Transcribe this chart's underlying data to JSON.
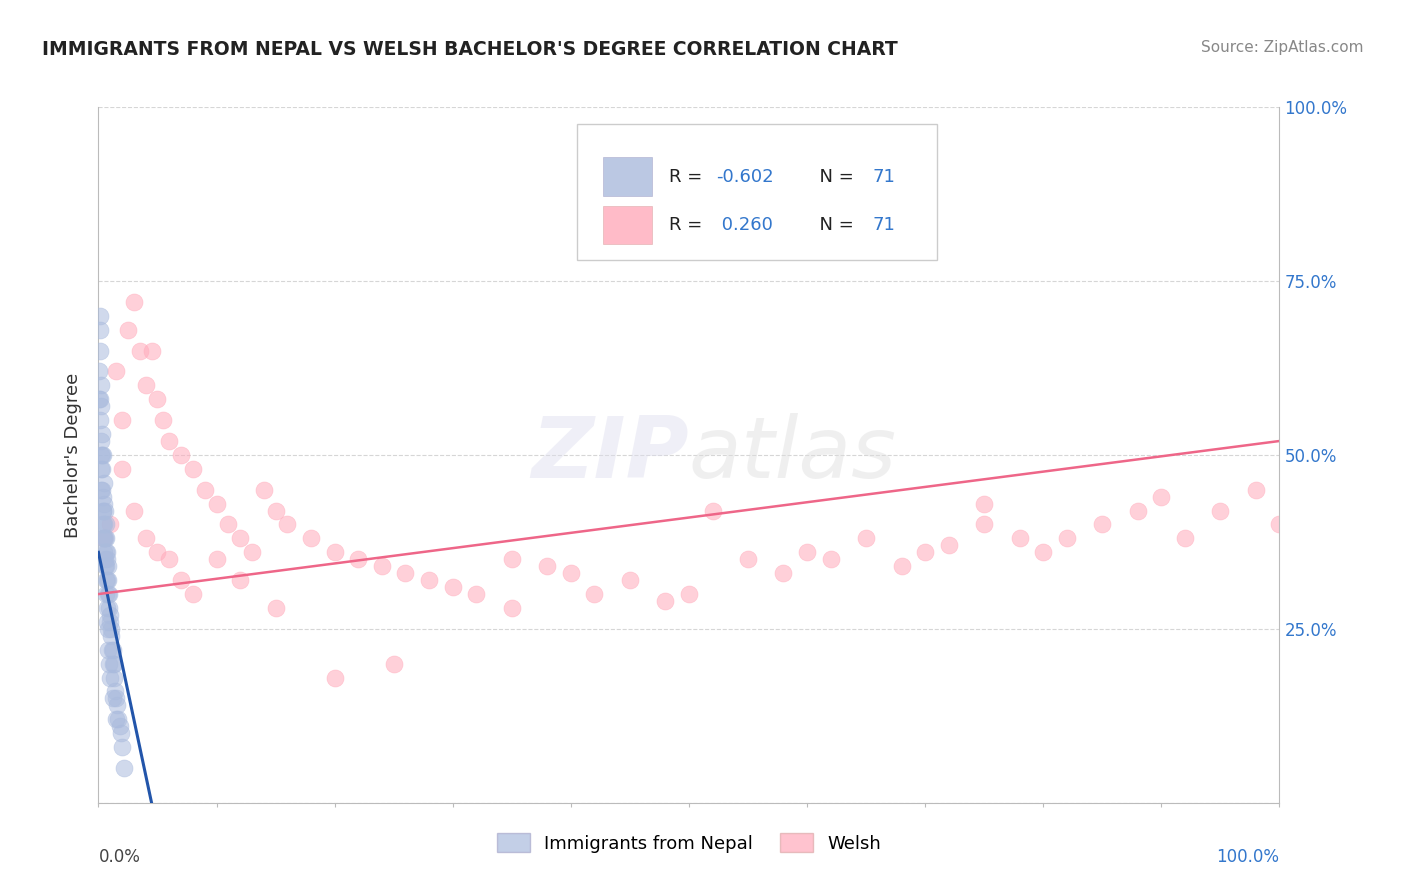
{
  "title": "IMMIGRANTS FROM NEPAL VS WELSH BACHELOR'S DEGREE CORRELATION CHART",
  "source": "Source: ZipAtlas.com",
  "ylabel": "Bachelor's Degree",
  "background_color": "#ffffff",
  "grid_color": "#cccccc",
  "blue_color": "#aabbdd",
  "pink_color": "#ffaabb",
  "blue_line_color": "#2255aa",
  "pink_line_color": "#ee6688",
  "xlim": [
    0,
    100
  ],
  "ylim": [
    0,
    100
  ],
  "yticks": [
    0,
    25,
    50,
    75,
    100
  ],
  "nepal_x": [
    0.05,
    0.08,
    0.1,
    0.12,
    0.15,
    0.18,
    0.2,
    0.22,
    0.25,
    0.28,
    0.3,
    0.32,
    0.35,
    0.38,
    0.4,
    0.42,
    0.45,
    0.48,
    0.5,
    0.52,
    0.55,
    0.58,
    0.6,
    0.62,
    0.65,
    0.68,
    0.7,
    0.72,
    0.75,
    0.78,
    0.8,
    0.85,
    0.9,
    0.92,
    0.95,
    1.0,
    1.05,
    1.1,
    1.15,
    1.2,
    1.25,
    1.3,
    1.35,
    1.4,
    1.5,
    1.6,
    1.7,
    1.8,
    1.9,
    2.0,
    0.1,
    0.15,
    0.2,
    0.25,
    0.3,
    0.35,
    0.4,
    0.45,
    0.5,
    0.55,
    0.6,
    0.65,
    0.7,
    0.75,
    0.8,
    0.85,
    0.9,
    1.0,
    1.2,
    1.5,
    2.2
  ],
  "nepal_y": [
    62,
    58,
    65,
    70,
    55,
    60,
    52,
    48,
    57,
    50,
    53,
    45,
    42,
    50,
    44,
    38,
    46,
    40,
    43,
    35,
    42,
    38,
    40,
    36,
    38,
    34,
    36,
    32,
    35,
    30,
    34,
    32,
    30,
    28,
    27,
    26,
    25,
    24,
    22,
    20,
    22,
    20,
    18,
    16,
    15,
    14,
    12,
    11,
    10,
    8,
    68,
    58,
    50,
    45,
    48,
    42,
    40,
    36,
    38,
    34,
    32,
    30,
    28,
    26,
    25,
    22,
    20,
    18,
    15,
    12,
    5
  ],
  "welsh_x": [
    0.5,
    1.0,
    1.5,
    2.0,
    2.5,
    3.0,
    3.5,
    4.0,
    4.5,
    5.0,
    5.5,
    6.0,
    7.0,
    8.0,
    9.0,
    10.0,
    11.0,
    12.0,
    13.0,
    14.0,
    15.0,
    16.0,
    18.0,
    20.0,
    22.0,
    24.0,
    26.0,
    28.0,
    30.0,
    32.0,
    35.0,
    38.0,
    40.0,
    42.0,
    45.0,
    48.0,
    50.0,
    52.0,
    55.0,
    58.0,
    60.0,
    62.0,
    65.0,
    68.0,
    70.0,
    72.0,
    75.0,
    78.0,
    80.0,
    82.0,
    85.0,
    88.0,
    90.0,
    92.0,
    95.0,
    98.0,
    100.0,
    2.0,
    3.0,
    4.0,
    5.0,
    6.0,
    7.0,
    8.0,
    10.0,
    12.0,
    15.0,
    20.0,
    25.0,
    35.0,
    75.0
  ],
  "welsh_y": [
    38,
    40,
    62,
    55,
    68,
    72,
    65,
    60,
    65,
    58,
    55,
    52,
    50,
    48,
    45,
    43,
    40,
    38,
    36,
    45,
    42,
    40,
    38,
    36,
    35,
    34,
    33,
    32,
    31,
    30,
    35,
    34,
    33,
    30,
    32,
    29,
    30,
    42,
    35,
    33,
    36,
    35,
    38,
    34,
    36,
    37,
    40,
    38,
    36,
    38,
    40,
    42,
    44,
    38,
    42,
    45,
    40,
    48,
    42,
    38,
    36,
    35,
    32,
    30,
    35,
    32,
    28,
    18,
    20,
    28,
    43
  ],
  "blue_trend": [
    0.0,
    4.5
  ],
  "blue_trend_y": [
    36,
    0
  ],
  "pink_trend": [
    0.0,
    100.0
  ],
  "pink_trend_y": [
    30,
    52
  ]
}
